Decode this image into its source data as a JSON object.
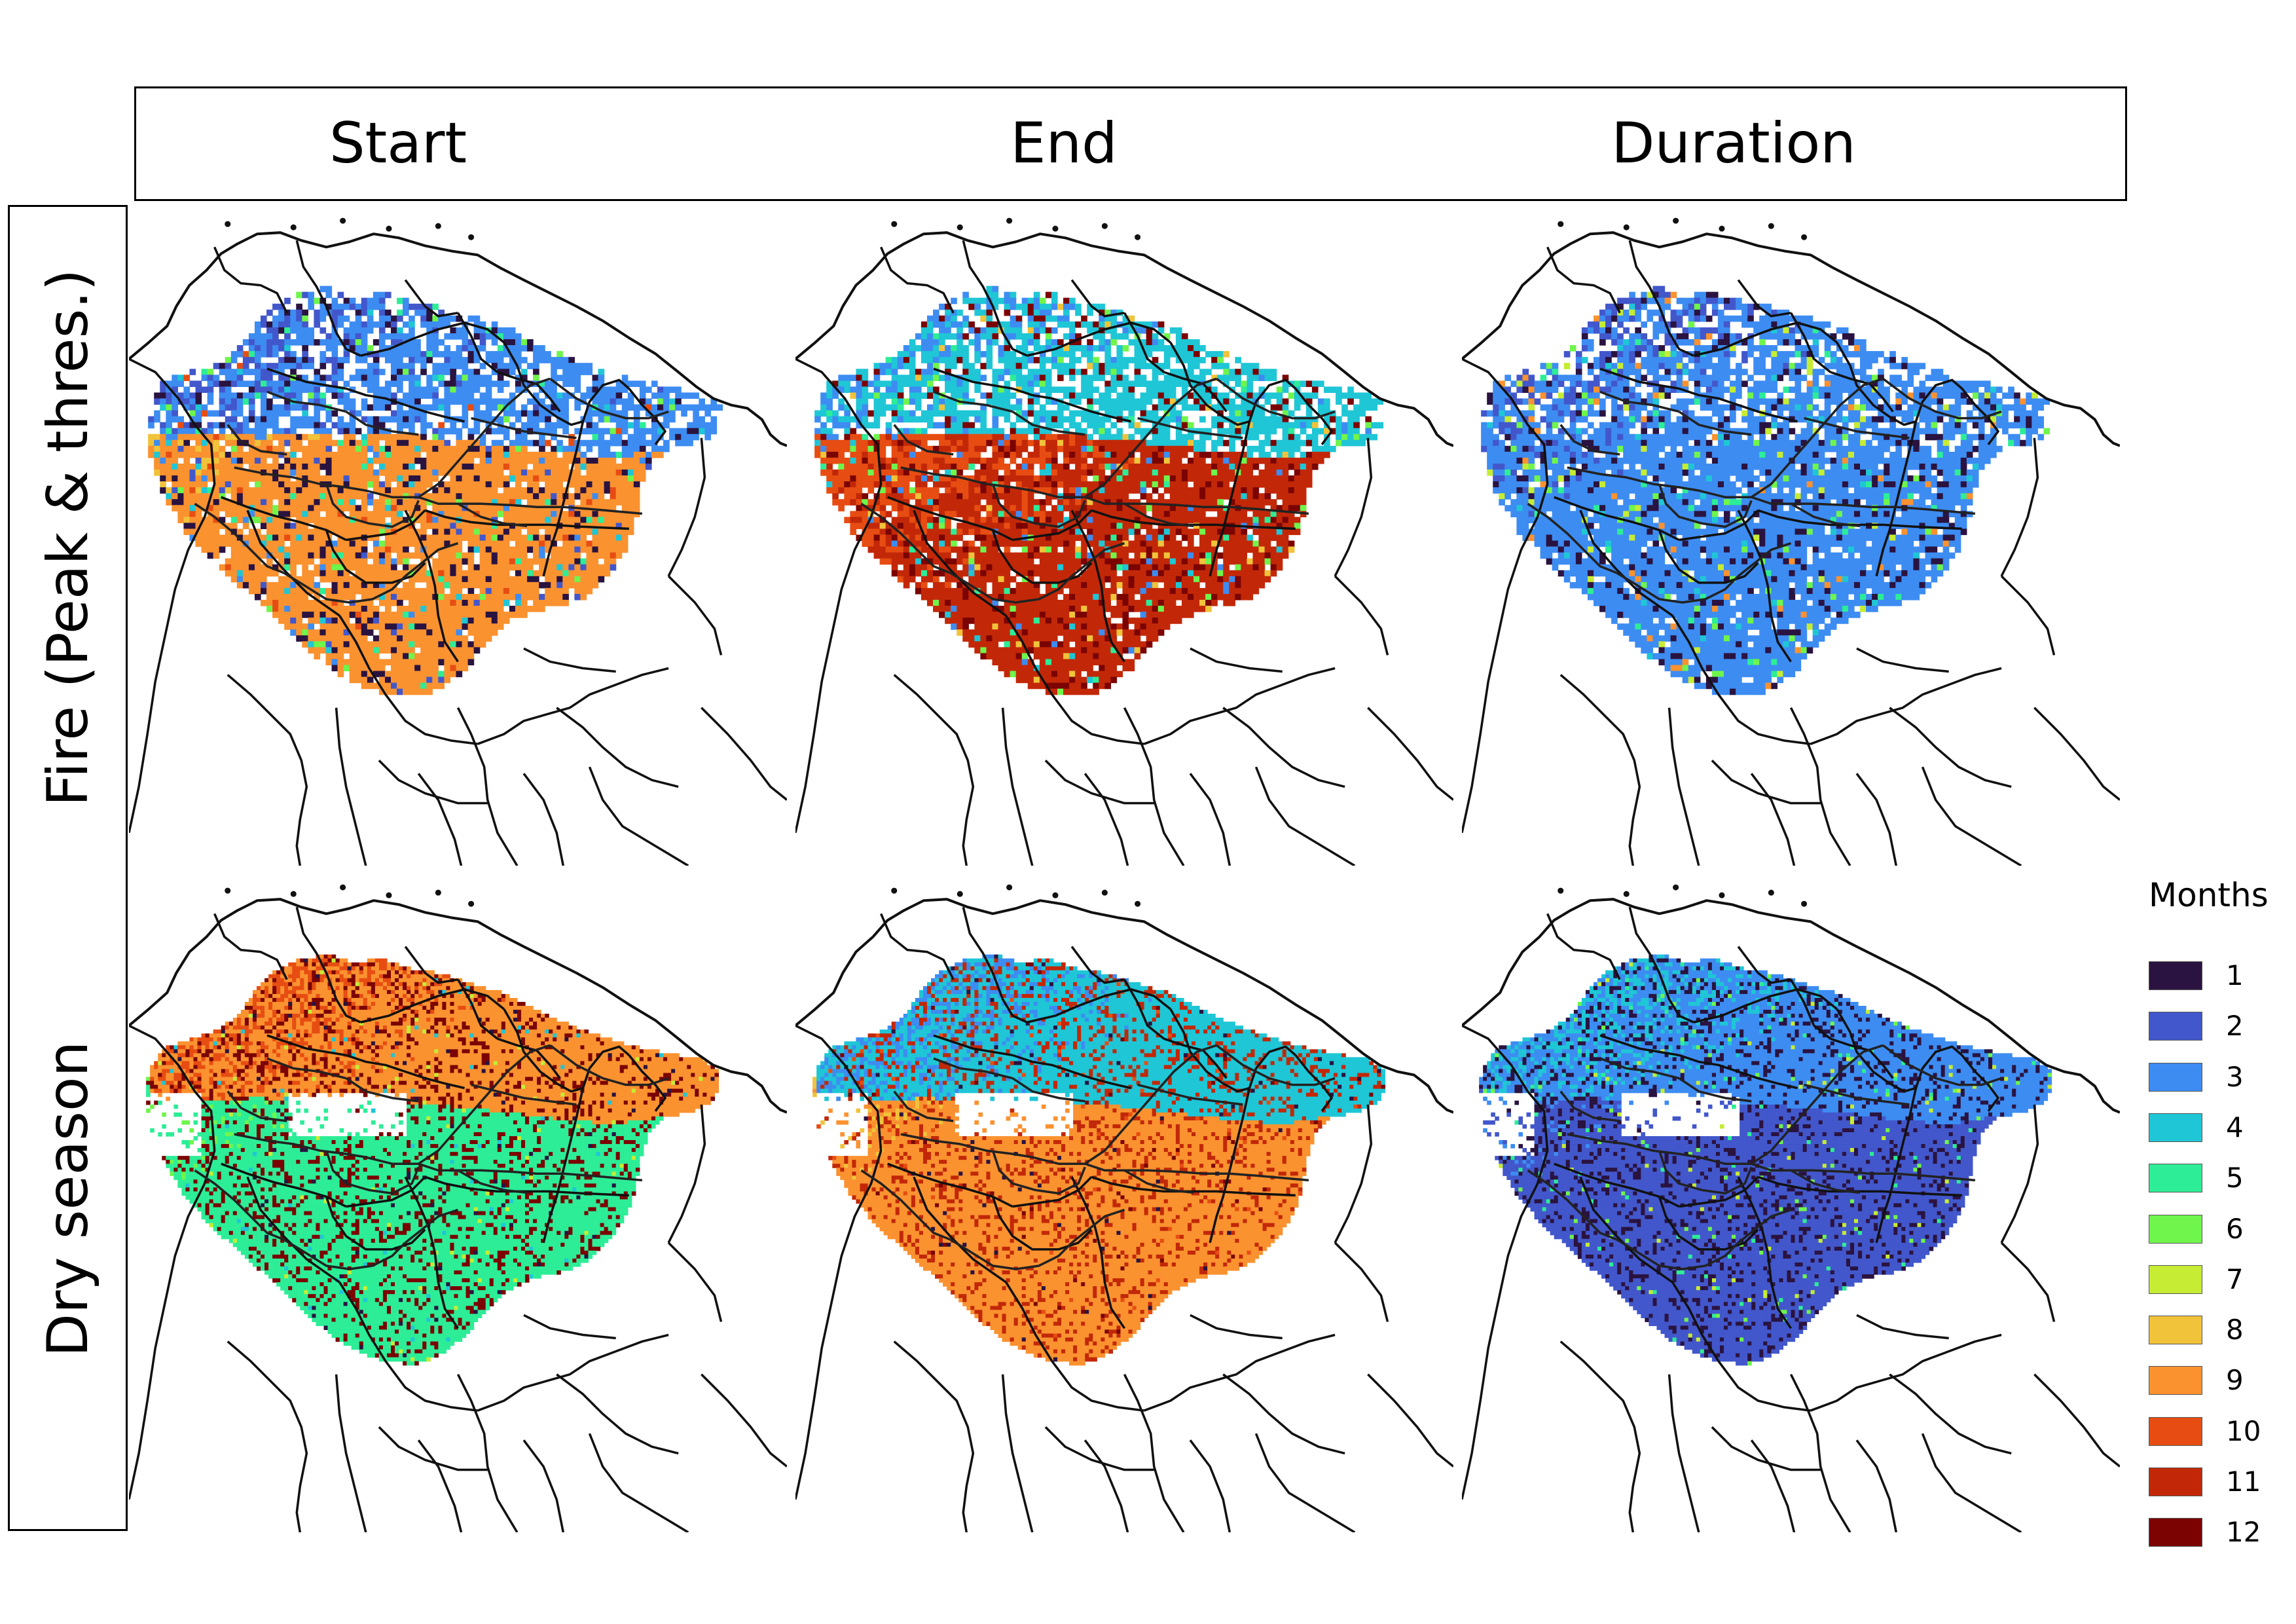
{
  "figure": {
    "columns": [
      "Start",
      "End",
      "Duration"
    ],
    "rows": [
      "Fire (Peak & thres.)",
      "Dry season"
    ]
  },
  "legend": {
    "title": "Months",
    "items": [
      {
        "label": "1",
        "color": "#2a1340"
      },
      {
        "label": "2",
        "color": "#4257cb"
      },
      {
        "label": "3",
        "color": "#3d8cf2"
      },
      {
        "label": "4",
        "color": "#1fc6d6"
      },
      {
        "label": "5",
        "color": "#2ded97"
      },
      {
        "label": "6",
        "color": "#6ff54c"
      },
      {
        "label": "7",
        "color": "#c6ec34"
      },
      {
        "label": "8",
        "color": "#f0c33a"
      },
      {
        "label": "9",
        "color": "#fa9230"
      },
      {
        "label": "10",
        "color": "#e74d12"
      },
      {
        "label": "11",
        "color": "#c22808"
      },
      {
        "label": "12",
        "color": "#7b0403"
      }
    ]
  },
  "panels": [
    {
      "column": "Start",
      "row": "Fire (Peak & thres.)",
      "style": "fire",
      "north": [
        2,
        3
      ],
      "south": [
        8,
        9
      ],
      "accent": 1,
      "speckle": [
        1,
        2,
        3,
        4,
        5,
        6,
        10
      ]
    },
    {
      "column": "End",
      "row": "Fire (Peak & thres.)",
      "style": "fire",
      "north": [
        3,
        4
      ],
      "south": [
        9,
        10,
        11
      ],
      "accent": 12,
      "speckle": [
        3,
        4,
        5,
        6,
        8,
        12
      ]
    },
    {
      "column": "Duration",
      "row": "Fire (Peak & thres.)",
      "style": "fire",
      "north": [
        2,
        3
      ],
      "south": [
        2,
        3
      ],
      "accent": 1,
      "speckle": [
        1,
        4,
        5,
        6,
        7,
        9
      ]
    },
    {
      "column": "Start",
      "row": "Dry season",
      "style": "dry",
      "north": [
        10,
        9
      ],
      "south": [
        6,
        5
      ],
      "accent": 12,
      "speckle": [
        1,
        4,
        7
      ]
    },
    {
      "column": "End",
      "row": "Dry season",
      "style": "dry",
      "north": [
        3,
        4
      ],
      "south": [
        8,
        9
      ],
      "accent": 11,
      "speckle": [
        10,
        12,
        1
      ]
    },
    {
      "column": "Duration",
      "row": "Dry season",
      "style": "dry",
      "north": [
        4,
        3
      ],
      "south": [
        3,
        2
      ],
      "accent": 1,
      "speckle": [
        5,
        6,
        7
      ]
    }
  ]
}
